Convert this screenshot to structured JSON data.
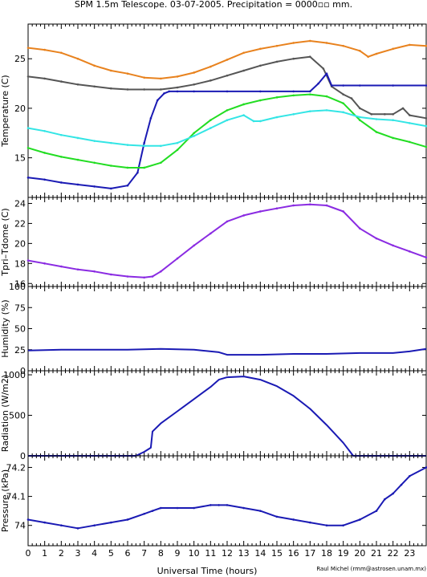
{
  "title": "SPM 1.5m Telescope. 03-07-2005. Precipitation = 0000▫▫ mm.",
  "x_axis": {
    "label": "Universal Time (hours)",
    "range": [
      0,
      24
    ],
    "ticks": [
      "0",
      "1",
      "2",
      "3",
      "4",
      "5",
      "6",
      "7",
      "8",
      "9",
      "10",
      "11",
      "12",
      "13",
      "14",
      "15",
      "16",
      "17",
      "18",
      "19",
      "20",
      "21",
      "22",
      "23"
    ]
  },
  "credit": "Raul Michel (rmm@astrosen.unam.mx)",
  "colors": {
    "orange": "#e8821e",
    "gray": "#555555",
    "blue": "#1a1ab4",
    "green": "#22dd22",
    "cyan": "#33e5e5",
    "purple": "#8a2be2"
  },
  "chart_data": [
    {
      "type": "scatter",
      "id": "temperature",
      "ylabel": "Temperature (C)",
      "ylim": [
        11,
        28.5
      ],
      "yticks": [
        "15",
        "20",
        "25"
      ],
      "series": [
        {
          "color": "orange",
          "x": [
            0,
            1,
            2,
            3,
            4,
            5,
            6,
            7,
            8,
            9,
            10,
            11,
            12,
            13,
            14,
            15,
            16,
            17,
            18,
            19,
            20,
            20.5,
            21,
            22,
            23,
            24
          ],
          "y": [
            26.1,
            25.9,
            25.6,
            25.0,
            24.3,
            23.8,
            23.5,
            23.1,
            23.0,
            23.2,
            23.6,
            24.2,
            24.9,
            25.6,
            26.0,
            26.3,
            26.6,
            26.8,
            26.6,
            26.3,
            25.8,
            25.2,
            25.5,
            26.0,
            26.4,
            26.3
          ]
        },
        {
          "color": "gray",
          "x": [
            0,
            1,
            2,
            3,
            4,
            5,
            6,
            7,
            8,
            9,
            10,
            11,
            12,
            13,
            14,
            15,
            16,
            17,
            17.8,
            18.3,
            19,
            19.5,
            20,
            20.7,
            21.5,
            22,
            22.6,
            23,
            24
          ],
          "y": [
            23.2,
            23.0,
            22.7,
            22.4,
            22.2,
            22.0,
            21.9,
            21.9,
            21.9,
            22.1,
            22.4,
            22.8,
            23.3,
            23.8,
            24.3,
            24.7,
            25.0,
            25.2,
            24.0,
            22.2,
            21.4,
            21.0,
            20.0,
            19.4,
            19.4,
            19.4,
            20.0,
            19.3,
            19.0
          ]
        },
        {
          "color": "blue",
          "x": [
            0,
            1,
            2,
            3,
            4,
            5,
            6,
            6.6,
            7,
            7.4,
            7.8,
            8.2,
            8.5,
            9,
            10,
            12,
            14,
            16,
            17,
            17.5,
            18,
            18.3,
            19,
            20,
            22,
            24
          ],
          "y": [
            13.0,
            12.8,
            12.5,
            12.3,
            12.1,
            11.9,
            12.2,
            13.5,
            16.5,
            19.0,
            20.8,
            21.5,
            21.7,
            21.7,
            21.7,
            21.7,
            21.7,
            21.7,
            21.7,
            22.5,
            23.5,
            22.3,
            22.3,
            22.3,
            22.3,
            22.3
          ]
        },
        {
          "color": "green",
          "x": [
            0,
            1,
            2,
            3,
            4,
            5,
            6,
            7,
            8,
            9,
            10,
            11,
            12,
            13,
            14,
            15,
            16,
            17,
            18,
            19,
            20,
            21,
            22,
            23,
            24
          ],
          "y": [
            16.0,
            15.5,
            15.1,
            14.8,
            14.5,
            14.2,
            14.0,
            14.0,
            14.5,
            15.8,
            17.5,
            18.8,
            19.8,
            20.4,
            20.8,
            21.1,
            21.3,
            21.4,
            21.2,
            20.5,
            18.8,
            17.6,
            17.0,
            16.6,
            16.1
          ]
        },
        {
          "color": "cyan",
          "x": [
            0,
            1,
            2,
            3,
            4,
            5,
            6,
            7,
            8,
            9,
            10,
            11,
            12,
            13,
            13.6,
            14,
            15,
            16,
            17,
            18,
            19,
            20,
            21,
            22,
            23,
            24
          ],
          "y": [
            18.0,
            17.7,
            17.3,
            17.0,
            16.7,
            16.5,
            16.3,
            16.2,
            16.2,
            16.5,
            17.2,
            18.0,
            18.8,
            19.3,
            18.7,
            18.7,
            19.1,
            19.4,
            19.7,
            19.8,
            19.6,
            19.1,
            18.9,
            18.8,
            18.5,
            18.2
          ]
        }
      ]
    },
    {
      "type": "scatter",
      "id": "tpri-tdome",
      "ylabel": "Tpri–Tdome (C)",
      "ylim": [
        15.7,
        24.6
      ],
      "yticks": [
        "16",
        "18",
        "20",
        "22",
        "24"
      ],
      "series": [
        {
          "color": "purple",
          "x": [
            0,
            1,
            2,
            3,
            4,
            5,
            6,
            7,
            7.5,
            8,
            9,
            10,
            11,
            12,
            13,
            14,
            15,
            16,
            17,
            18,
            19,
            20,
            21,
            22,
            23,
            24
          ],
          "y": [
            18.3,
            18.0,
            17.7,
            17.4,
            17.2,
            16.9,
            16.7,
            16.6,
            16.7,
            17.2,
            18.5,
            19.8,
            21.0,
            22.2,
            22.8,
            23.2,
            23.5,
            23.8,
            23.9,
            23.8,
            23.2,
            21.5,
            20.5,
            19.8,
            19.2,
            18.6
          ]
        }
      ]
    },
    {
      "type": "line",
      "id": "humidity",
      "ylabel": "Humidity (%)",
      "ylim": [
        0,
        100
      ],
      "yticks": [
        "0",
        "25",
        "50",
        "75",
        "100"
      ],
      "series": [
        {
          "color": "blue",
          "x": [
            0,
            2,
            4,
            6,
            8,
            10,
            11.5,
            12,
            14,
            16,
            18,
            20,
            22,
            23,
            24
          ],
          "y": [
            24,
            25,
            25,
            25,
            26,
            25,
            22,
            19,
            19,
            20,
            20,
            21,
            21,
            23,
            26
          ]
        }
      ]
    },
    {
      "type": "line",
      "id": "radiation",
      "ylabel": "Radiation (W/m2)",
      "ylim": [
        0,
        1050
      ],
      "yticks": [
        "0",
        "500",
        "1000"
      ],
      "series": [
        {
          "color": "blue",
          "x": [
            0,
            6.5,
            7,
            7.4,
            7.5,
            8,
            9,
            10,
            11,
            11.5,
            12,
            13,
            14,
            15,
            16,
            17,
            18,
            19,
            19.6,
            20,
            24
          ],
          "y": [
            0,
            0,
            50,
            100,
            300,
            400,
            550,
            700,
            850,
            940,
            970,
            980,
            940,
            860,
            740,
            580,
            380,
            160,
            0,
            0,
            0
          ]
        }
      ]
    },
    {
      "type": "scatter",
      "id": "pressure",
      "ylabel": "Pressure (kPa)",
      "ylim": [
        73.93,
        74.24
      ],
      "yticks": [
        "74",
        "74.1",
        "74.2"
      ],
      "series": [
        {
          "color": "blue",
          "x": [
            0,
            1,
            2,
            3,
            4,
            5,
            6,
            7,
            7.5,
            8,
            9,
            10,
            11,
            11.5,
            12,
            13,
            14,
            15,
            16,
            17,
            18,
            19,
            20,
            21,
            21.5,
            22,
            22.5,
            23,
            24
          ],
          "y": [
            74.02,
            74.01,
            74.0,
            73.99,
            74.0,
            74.01,
            74.02,
            74.04,
            74.05,
            74.06,
            74.06,
            74.06,
            74.07,
            74.07,
            74.07,
            74.06,
            74.05,
            74.03,
            74.02,
            74.01,
            74.0,
            74.0,
            74.02,
            74.05,
            74.09,
            74.11,
            74.14,
            74.17,
            74.2
          ]
        }
      ]
    }
  ]
}
